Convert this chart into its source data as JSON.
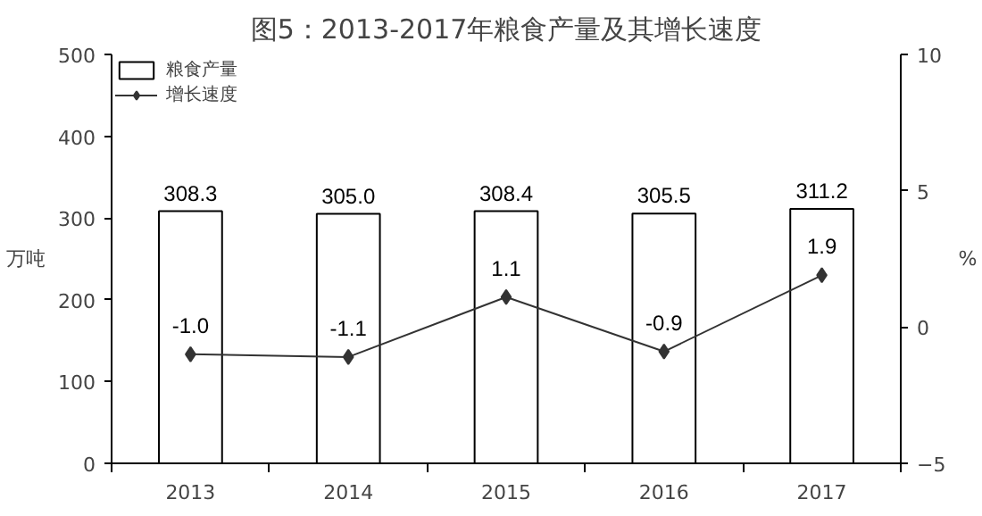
{
  "chart_data": {
    "type": "bar",
    "title": "图5：2013-2017年粮食产量及其增长速度",
    "categories": [
      "2013",
      "2014",
      "2015",
      "2016",
      "2017"
    ],
    "ylabel": "万吨",
    "y2label": "%",
    "ylim": [
      0,
      500
    ],
    "yticks": [
      0,
      100,
      200,
      300,
      400,
      500
    ],
    "y2lim": [
      -5,
      10
    ],
    "y2ticks": [
      -5,
      0,
      5,
      10
    ],
    "series": [
      {
        "name": "粮食产量",
        "color": "#ffffff",
        "values": [
          308.3,
          305.0,
          308.4,
          305.5,
          311.2
        ],
        "value_labels": [
          "308.3",
          "305.0",
          "308.4",
          "305.5",
          "311.2"
        ]
      },
      {
        "name": "增长速度",
        "type": "line",
        "axis": "y2",
        "color": "#333333",
        "values": [
          -1.0,
          -1.1,
          1.1,
          -0.9,
          1.9
        ],
        "value_labels": [
          "-1.0",
          "-1.1",
          "1.1",
          "-0.9",
          "1.9"
        ]
      }
    ],
    "marker": "diamond",
    "line_style": "solid",
    "legend": "top left",
    "grid": false
  }
}
